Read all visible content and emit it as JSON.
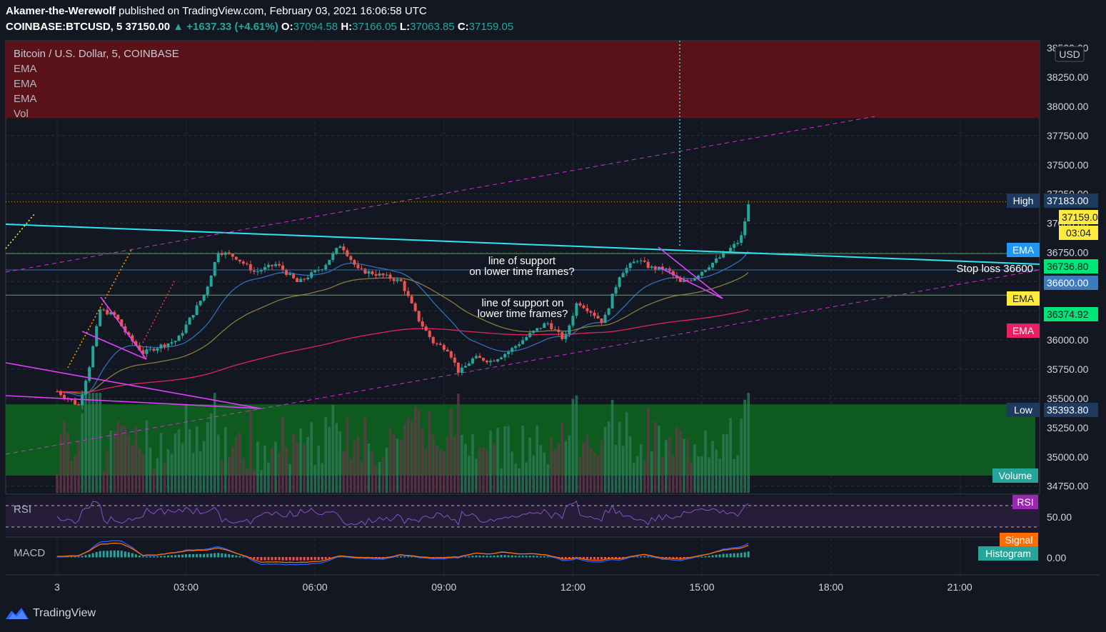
{
  "header": {
    "author": "Akamer-the-Werewolf",
    "published": "published on TradingView.com, February 03, 2021 16:06:58 UTC",
    "symbol": "COINBASE:BTCUSD, 5",
    "last": "37150.00",
    "change": "▲ +1637.33 (+4.61%)",
    "o_label": "O:",
    "o": "37094.58",
    "h_label": "H:",
    "h": "37166.05",
    "l_label": "L:",
    "l": "37063.85",
    "c_label": "C:",
    "c": "37159.05"
  },
  "legend": {
    "title": "Bitcoin / U.S. Dollar, 5, COINBASE",
    "ema1": "EMA",
    "ema2": "EMA",
    "ema3": "EMA",
    "vol": "Vol"
  },
  "footer": {
    "brand": "TradingView"
  },
  "colors": {
    "bg": "#131722",
    "up": "#26a69a",
    "down": "#ef5350",
    "trendline": "#2be6f0",
    "channel": "#cc33cc",
    "ema_fast": "#2f6fb8",
    "ema_mid": "#8a7a3c",
    "ema_slow": "#e0245e",
    "support": "#4caf50"
  },
  "chart_data": {
    "type": "candlestick",
    "price_axis": {
      "unit": "USD",
      "ticks": [
        "38500.00",
        "38250.00",
        "38000.00",
        "37750.00",
        "37500.00",
        "37250.00",
        "37000.00",
        "36750.00",
        "36500.00",
        "36250.00",
        "36000.00",
        "35750.00",
        "35500.00",
        "35250.00",
        "35000.00",
        "34750.00"
      ]
    },
    "time_axis": {
      "ticks": [
        "3",
        "03:00",
        "06:00",
        "09:00",
        "12:00",
        "15:00",
        "18:00",
        "21:00"
      ]
    },
    "price_labels": {
      "high_label": "High",
      "high": "37183.00",
      "last": "37159.05",
      "countdown": "03:04",
      "ema_label_1": "EMA",
      "ema_value_1": "36736.80",
      "stop_label": "Stop loss 36600",
      "stop": "36600.00",
      "ema_label_2": "EMA",
      "ema_value_2": "36374.92",
      "ema_label_3": "EMA",
      "low_label": "Low",
      "low": "35393.80"
    },
    "zones": {
      "resistance": [
        37900,
        38560
      ],
      "demand": [
        34840,
        35450
      ]
    },
    "horizontal_levels": [
      36740,
      36600,
      36385
    ],
    "annotations": [
      "line of support\non lower time frames?",
      "line of support on\nlower time frames?"
    ],
    "approx_path": [
      [
        0,
        35560
      ],
      [
        0.5,
        35440
      ],
      [
        0.75,
        35780
      ],
      [
        1,
        36260
      ],
      [
        1.35,
        36210
      ],
      [
        1.65,
        36030
      ],
      [
        2.0,
        35890
      ],
      [
        2.4,
        35950
      ],
      [
        2.8,
        36000
      ],
      [
        3.1,
        36190
      ],
      [
        3.45,
        36410
      ],
      [
        3.75,
        36760
      ],
      [
        4.15,
        36710
      ],
      [
        4.6,
        36580
      ],
      [
        5.1,
        36650
      ],
      [
        5.6,
        36490
      ],
      [
        6.2,
        36630
      ],
      [
        6.6,
        36820
      ],
      [
        7.0,
        36600
      ],
      [
        7.6,
        36550
      ],
      [
        8.0,
        36500
      ],
      [
        8.4,
        36180
      ],
      [
        8.75,
        35980
      ],
      [
        9.1,
        35920
      ],
      [
        9.35,
        35720
      ],
      [
        9.7,
        35850
      ],
      [
        10.1,
        35820
      ],
      [
        10.5,
        35900
      ],
      [
        11.0,
        36050
      ],
      [
        11.4,
        36150
      ],
      [
        11.8,
        36000
      ],
      [
        12.1,
        36330
      ],
      [
        12.4,
        36250
      ],
      [
        12.7,
        36150
      ],
      [
        13.1,
        36570
      ],
      [
        13.5,
        36690
      ],
      [
        13.8,
        36620
      ],
      [
        14.2,
        36600
      ],
      [
        14.5,
        36490
      ],
      [
        14.8,
        36530
      ],
      [
        15.1,
        36620
      ],
      [
        15.5,
        36730
      ],
      [
        15.9,
        36860
      ],
      [
        16.1,
        37180
      ]
    ],
    "oscillators": {
      "rsi": {
        "label": "RSI",
        "level": "50.00"
      },
      "macd": {
        "label": "MACD",
        "signal_label": "Signal",
        "hist_label": "Histogram",
        "level": "0.00"
      },
      "volume_label": "Volume"
    }
  }
}
